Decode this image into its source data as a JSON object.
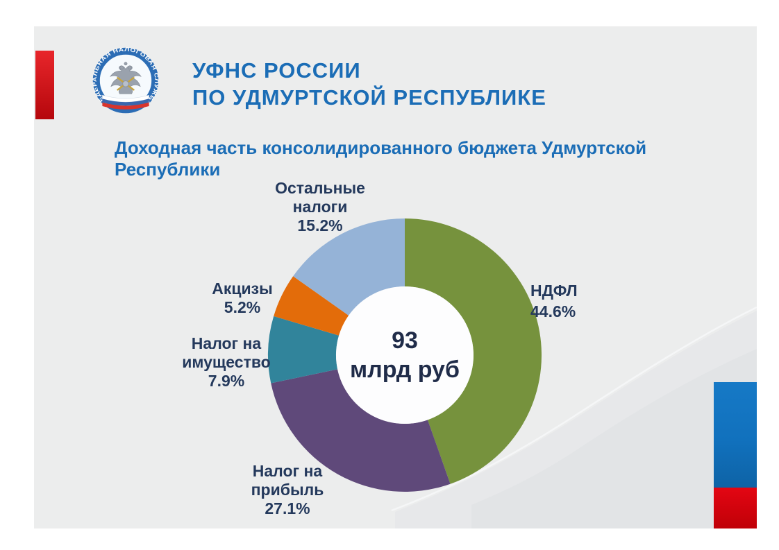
{
  "header": {
    "org_line1": "УФНС РОССИИ",
    "org_line2": "ПО УДМУРТСКОЙ РЕСПУБЛИКЕ",
    "logo": {
      "ring_text": "ФЕДЕРАЛЬНАЯ НАЛОГОВАЯ СЛУЖБА"
    }
  },
  "title": "Доходная часть консолидированного бюджета Удмуртской Республики",
  "chart_data": {
    "type": "pie",
    "subtype": "donut",
    "title": "Доходная часть консолидированного бюджета Удмуртской Республики",
    "center_value": "93",
    "center_unit": "млрд руб",
    "start_angle_deg": 0,
    "direction": "clockwise",
    "segments": [
      {
        "label": "НДФЛ",
        "value": 44.6,
        "color": "#76923D"
      },
      {
        "label": "Налог на прибыль",
        "value": 27.1,
        "color": "#5F497A"
      },
      {
        "label": "Налог на имущество",
        "value": 7.9,
        "color": "#31849B"
      },
      {
        "label": "Акцизы",
        "value": 5.2,
        "color": "#E36C0A"
      },
      {
        "label": "Остальные налоги",
        "value": 15.2,
        "color": "#95B3D7"
      }
    ],
    "callouts": [
      {
        "lines": [
          "Остальные",
          "налоги",
          "15.2%"
        ]
      },
      {
        "lines": [
          "Акцизы",
          "5.2%"
        ]
      },
      {
        "lines": [
          "Налог на",
          "имущество",
          "7.9%"
        ]
      },
      {
        "lines": [
          "НДФЛ",
          "44.6%"
        ]
      },
      {
        "lines": [
          "Налог на",
          "прибыль",
          "27.1%"
        ]
      }
    ]
  },
  "decor": {
    "page_bg": "#ffffff",
    "slide_bg": "#eceded",
    "swoosh_light": "#e7e8ea",
    "swoosh_dark": "#e2e4e6",
    "title_blue": "#1b6db6",
    "label_navy": "#24395c",
    "center_navy": "#202c49",
    "donut_hole": "#fdfdfe",
    "left_bar_red_top": "#e8262b",
    "left_bar_red_bottom": "#b5070c",
    "corner_blue": "#1171bd",
    "corner_red_top": "#e30613",
    "corner_red_bottom": "#c00007"
  }
}
